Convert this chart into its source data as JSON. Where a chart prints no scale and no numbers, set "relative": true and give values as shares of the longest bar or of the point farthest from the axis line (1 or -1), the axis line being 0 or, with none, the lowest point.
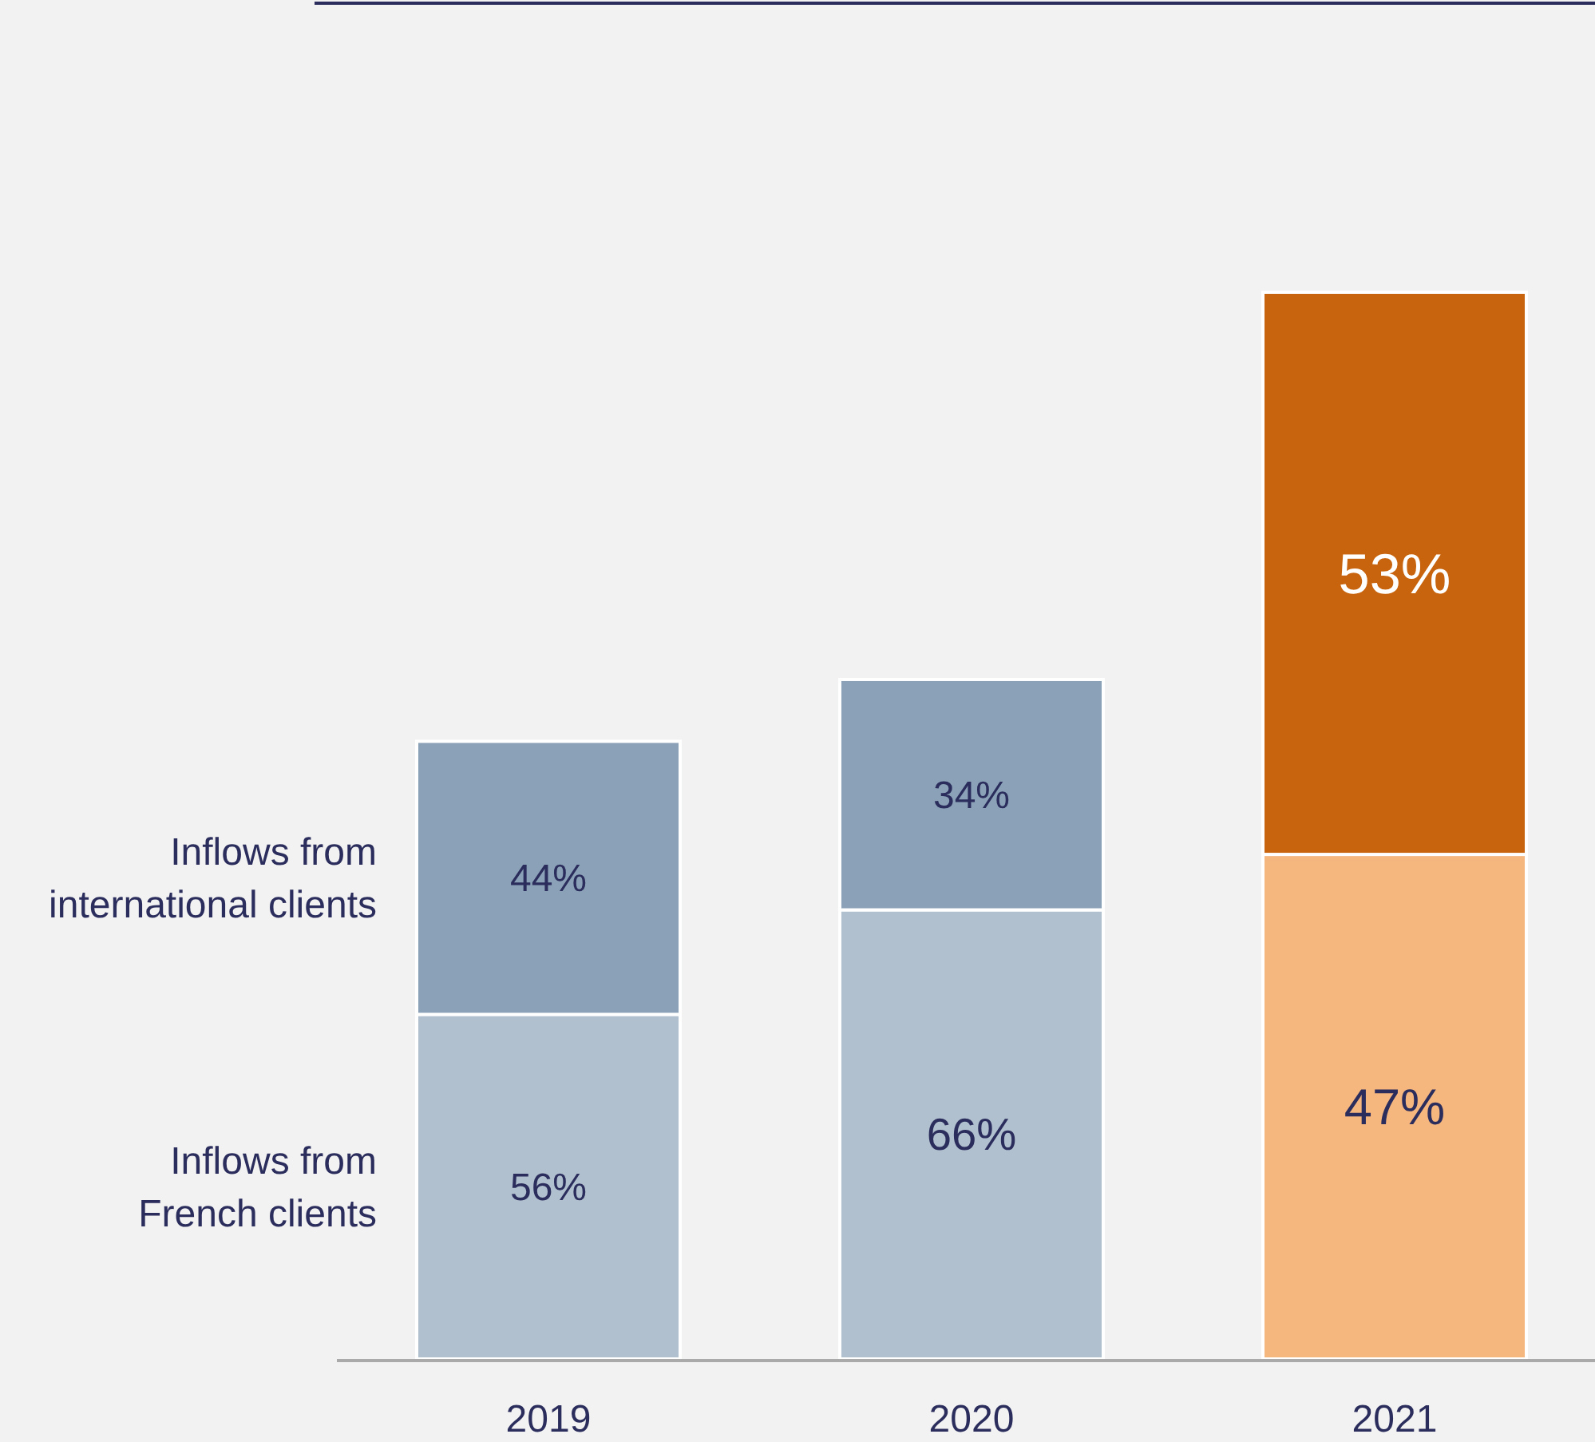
{
  "chart_data": {
    "type": "bar",
    "stacked": true,
    "relative": true,
    "legend": "left",
    "categories": [
      "2019",
      "2020",
      "2021"
    ],
    "series": [
      {
        "name": "Inflows from French clients",
        "colors": [
          "#b0c0cf",
          "#b0c0cf",
          "#f6b77f"
        ],
        "values": [
          0.323,
          0.421,
          0.473
        ]
      },
      {
        "name": "Inflows from international clients",
        "colors": [
          "#8aa1b7",
          "#8aa1b7",
          "#c8640e"
        ],
        "values": [
          0.256,
          0.216,
          0.527
        ]
      }
    ],
    "annotations": [
      "56%",
      "44%",
      "66%",
      "34%",
      "47%",
      "53%"
    ]
  }
}
